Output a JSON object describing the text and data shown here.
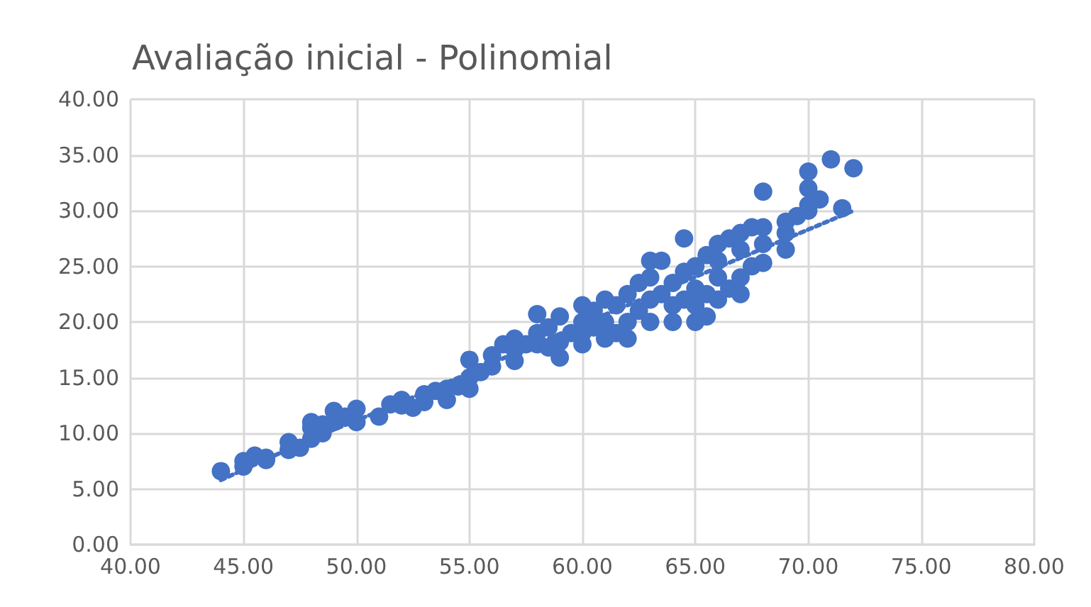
{
  "chart_data": {
    "type": "scatter",
    "title": "Avaliação inicial - Polinomial",
    "xlim": [
      40,
      80
    ],
    "xticks": [
      {
        "value": 40,
        "label": "40.00"
      },
      {
        "value": 45,
        "label": "45.00"
      },
      {
        "value": 50,
        "label": "50.00"
      },
      {
        "value": 55,
        "label": "55.00"
      },
      {
        "value": 60,
        "label": "60.00"
      },
      {
        "value": 65,
        "label": "65.00"
      },
      {
        "value": 70,
        "label": "70.00"
      },
      {
        "value": 75,
        "label": "75.00"
      },
      {
        "value": 80,
        "label": "80.00"
      }
    ],
    "ylim": [
      0,
      40
    ],
    "yticks": [
      {
        "value": 0,
        "label": "0.00"
      },
      {
        "value": 5,
        "label": "5.00"
      },
      {
        "value": 10,
        "label": "10.00"
      },
      {
        "value": 15,
        "label": "15.00"
      },
      {
        "value": 20,
        "label": "20.00"
      },
      {
        "value": 25,
        "label": "25.00"
      },
      {
        "value": 30,
        "label": "30.00"
      },
      {
        "value": 35,
        "label": "35.00"
      },
      {
        "value": 40,
        "label": "40.00"
      }
    ],
    "grid": true,
    "marker": "circle",
    "series": [
      {
        "color": "#4472c4",
        "x": [
          44,
          45,
          45,
          45.5,
          46,
          46,
          47,
          47,
          47.5,
          48,
          48,
          48,
          48.5,
          48.5,
          49,
          49,
          49.5,
          50,
          50,
          51,
          51.5,
          52,
          52,
          52.5,
          53,
          53,
          53.5,
          54,
          54,
          54.5,
          55,
          55,
          55,
          55.5,
          56,
          56,
          56.5,
          57,
          57,
          57,
          57.5,
          58,
          58,
          58,
          58.5,
          58.5,
          59,
          59,
          59,
          59.5,
          60,
          60,
          60,
          60,
          60.5,
          60.5,
          61,
          61,
          61,
          61.5,
          61.5,
          62,
          62,
          62,
          62.5,
          62.5,
          63,
          63,
          63,
          63,
          63.5,
          63.5,
          64,
          64,
          64,
          64.5,
          64.5,
          64.5,
          65,
          65,
          65,
          65,
          65.5,
          65.5,
          65.5,
          66,
          66,
          66,
          66,
          66.5,
          66.5,
          67,
          67,
          67,
          67,
          67.5,
          67.5,
          68,
          68,
          68,
          68,
          69,
          69,
          69,
          69.5,
          70,
          70,
          70,
          70,
          70.5,
          71,
          72,
          71.5
        ],
        "values": [
          6.6,
          7.0,
          7.5,
          8.0,
          7.8,
          7.6,
          8.5,
          9.2,
          8.7,
          9.5,
          10.5,
          11.0,
          10.8,
          10.0,
          11.0,
          12.0,
          11.5,
          11.0,
          12.2,
          11.5,
          12.6,
          12.5,
          13.0,
          12.3,
          12.8,
          13.5,
          13.8,
          14.0,
          13.0,
          14.2,
          14.0,
          15.0,
          16.6,
          15.5,
          16.0,
          17.0,
          18.0,
          17.5,
          18.5,
          16.5,
          18.0,
          18.0,
          19.0,
          20.7,
          19.5,
          17.7,
          18.2,
          20.5,
          16.8,
          19.0,
          19.0,
          20.0,
          21.5,
          18.0,
          19.5,
          21.0,
          18.5,
          20.0,
          22.0,
          19.0,
          21.5,
          20.0,
          22.5,
          18.5,
          21.0,
          23.5,
          22.0,
          20.0,
          25.5,
          24.0,
          25.5,
          22.5,
          21.5,
          23.5,
          20.0,
          24.5,
          27.5,
          22.0,
          23.0,
          25.0,
          20.0,
          21.5,
          26.0,
          22.5,
          20.5,
          24.0,
          27.0,
          22.0,
          25.5,
          23.0,
          27.5,
          24.0,
          26.5,
          28.0,
          22.5,
          28.5,
          25.0,
          27.0,
          31.7,
          28.5,
          25.3,
          26.5,
          29.0,
          28.0,
          29.5,
          30.5,
          32.0,
          33.5,
          30.0,
          31.0,
          34.6,
          33.8,
          30.2
        ]
      },
      {
        "type": "line",
        "color": "#4472c4",
        "marker": "none",
        "line_style": "dotted",
        "x": [
          44,
          48,
          52,
          56,
          60,
          64,
          68,
          72
        ],
        "values": [
          5.8,
          9.5,
          12.8,
          16.3,
          19.8,
          23.2,
          26.6,
          30.0
        ]
      }
    ]
  }
}
